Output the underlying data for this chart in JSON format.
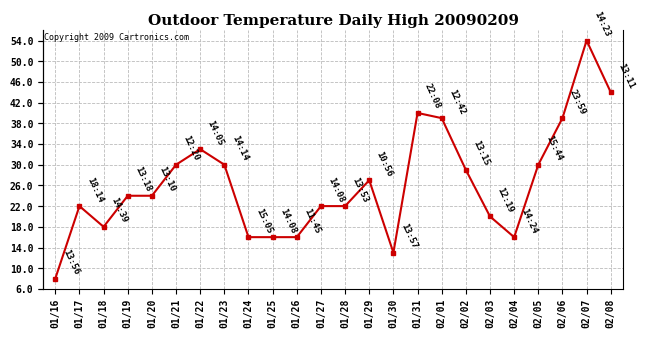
{
  "title": "Outdoor Temperature Daily High 20090209",
  "copyright": "Copyright 2009 Cartronics.com",
  "background_color": "#ffffff",
  "line_color": "#cc0000",
  "marker_color": "#cc0000",
  "grid_color": "#bbbbbb",
  "ylim": [
    6.0,
    56.0
  ],
  "yticks": [
    6.0,
    10.0,
    14.0,
    18.0,
    22.0,
    26.0,
    30.0,
    34.0,
    38.0,
    42.0,
    46.0,
    50.0,
    54.0
  ],
  "dates": [
    "01/16",
    "01/17",
    "01/18",
    "01/19",
    "01/20",
    "01/21",
    "01/22",
    "01/23",
    "01/24",
    "01/25",
    "01/26",
    "01/27",
    "01/28",
    "01/29",
    "01/30",
    "01/31",
    "02/01",
    "02/02",
    "02/03",
    "02/04",
    "02/05",
    "02/06",
    "02/07",
    "02/08"
  ],
  "values": [
    8.0,
    22.0,
    18.0,
    24.0,
    24.0,
    30.0,
    33.0,
    30.0,
    16.0,
    16.0,
    16.0,
    22.0,
    22.0,
    27.0,
    13.0,
    40.0,
    39.0,
    29.0,
    20.0,
    16.0,
    30.0,
    39.0,
    54.0,
    44.0
  ],
  "labels": [
    "13:56",
    "18:14",
    "14:39",
    "13:18",
    "13:10",
    "12:20",
    "14:05",
    "14:14",
    "15:05",
    "14:08",
    "11:45",
    "14:08",
    "13:53",
    "10:56",
    "13:57",
    "22:08",
    "12:42",
    "13:15",
    "12:19",
    "14:24",
    "15:44",
    "23:59",
    "14:23",
    "13:11"
  ],
  "title_fontsize": 11,
  "label_fontsize": 6.5,
  "tick_fontsize": 7,
  "copyright_fontsize": 6
}
